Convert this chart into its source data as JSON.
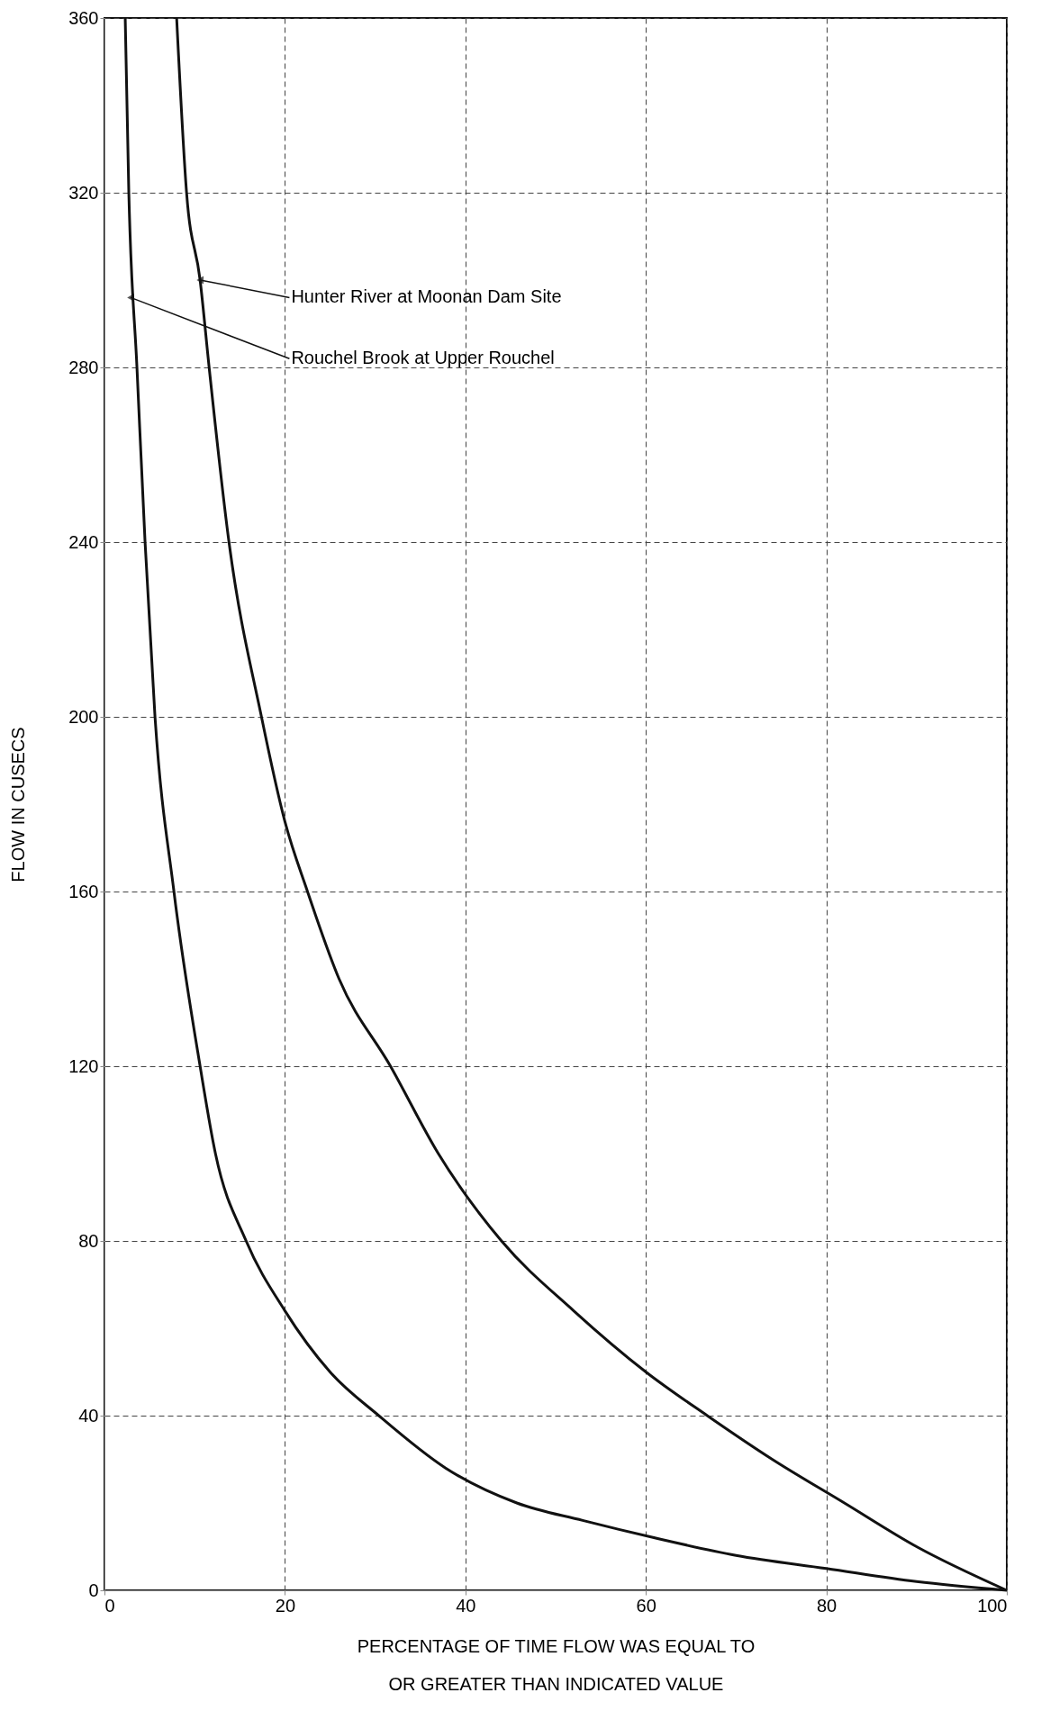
{
  "chart_data": {
    "type": "line",
    "xlabel": "PERCENTAGE OF TIME FLOW WAS EQUAL TO\nOR GREATER THAN INDICATED VALUE",
    "ylabel": "FLOW IN CUSECS",
    "series": [
      {
        "color": "#111111",
        "x": [
          8.0,
          9.1,
          10.6,
          11.6,
          13.8,
          17.4,
          20,
          22.5,
          26,
          31.7,
          37,
          44,
          52,
          60,
          66.8,
          74,
          82,
          90,
          100
        ],
        "values": [
          360,
          320,
          300,
          280,
          240,
          200,
          176,
          160,
          140,
          120,
          100,
          80,
          64,
          50,
          40,
          30,
          20,
          10,
          0
        ]
      },
      {
        "color": "#111111",
        "x": [
          2.3,
          2.7,
          3.6,
          4.5,
          5.6,
          7.7,
          10.6,
          12.3,
          15.7,
          20,
          25,
          30.4,
          37.8,
          45.7,
          53,
          61,
          70,
          80,
          90,
          100
        ],
        "values": [
          360,
          320,
          280,
          240,
          200,
          160,
          120,
          100,
          80,
          64,
          50,
          40,
          28,
          20,
          16,
          12,
          8,
          5,
          2,
          0
        ]
      }
    ],
    "xlim": [
      0,
      100
    ],
    "xticks": [
      0,
      20,
      40,
      60,
      80,
      100
    ],
    "ylim": [
      0,
      360
    ],
    "yticks": [
      0,
      40,
      80,
      120,
      160,
      200,
      240,
      280,
      320,
      360
    ],
    "grid": true,
    "marker": "none",
    "line_style": "solid",
    "annotations": [
      {
        "text": "Hunter River at Moonan Dam Site",
        "x": 10.6,
        "y": 300
      },
      {
        "text": "Rouchel Brook at Upper Rouchel",
        "x": 2.9,
        "y": 296
      }
    ]
  }
}
